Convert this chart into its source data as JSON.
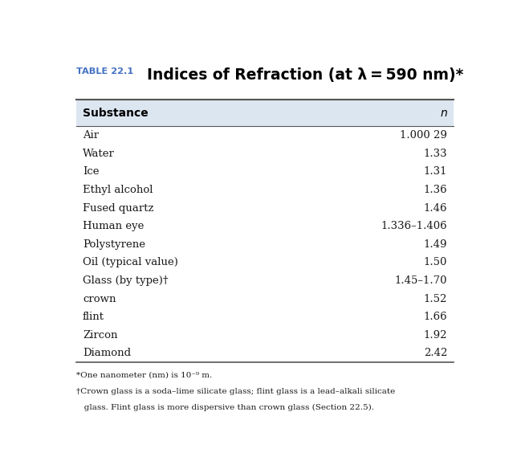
{
  "table_label": "TABLE 22.1",
  "title": "Indices of Refraction (at λ = 590 nm)*",
  "col1_header": "Substance",
  "col2_header": "n",
  "rows": [
    [
      "Air",
      "1.000 29"
    ],
    [
      "Water",
      "1.33"
    ],
    [
      "Ice",
      "1.31"
    ],
    [
      "Ethyl alcohol",
      "1.36"
    ],
    [
      "Fused quartz",
      "1.46"
    ],
    [
      "Human eye",
      "1.336–1.406"
    ],
    [
      "Polystyrene",
      "1.49"
    ],
    [
      "Oil (typical value)",
      "1.50"
    ],
    [
      "Glass (by type)†",
      "1.45–1.70"
    ],
    [
      "crown",
      "1.52"
    ],
    [
      "flint",
      "1.66"
    ],
    [
      "Zircon",
      "1.92"
    ],
    [
      "Diamond",
      "2.42"
    ]
  ],
  "footnote1": "*One nanometer (nm) is 10⁻⁹ m.",
  "footnote2": "†Crown glass is a soda–lime silicate glass; flint glass is a lead–alkali silicate",
  "footnote3": "   glass. Flint glass is more dispersive than crown glass (Section 22.5).",
  "header_bg": "#dce6f1",
  "bg_color": "#ffffff",
  "table_label_color": "#4472c4",
  "title_color": "#000000",
  "header_text_color": "#000000",
  "row_text_color": "#1a1a1a",
  "line_color": "#555555",
  "fig_width": 6.44,
  "fig_height": 5.74
}
